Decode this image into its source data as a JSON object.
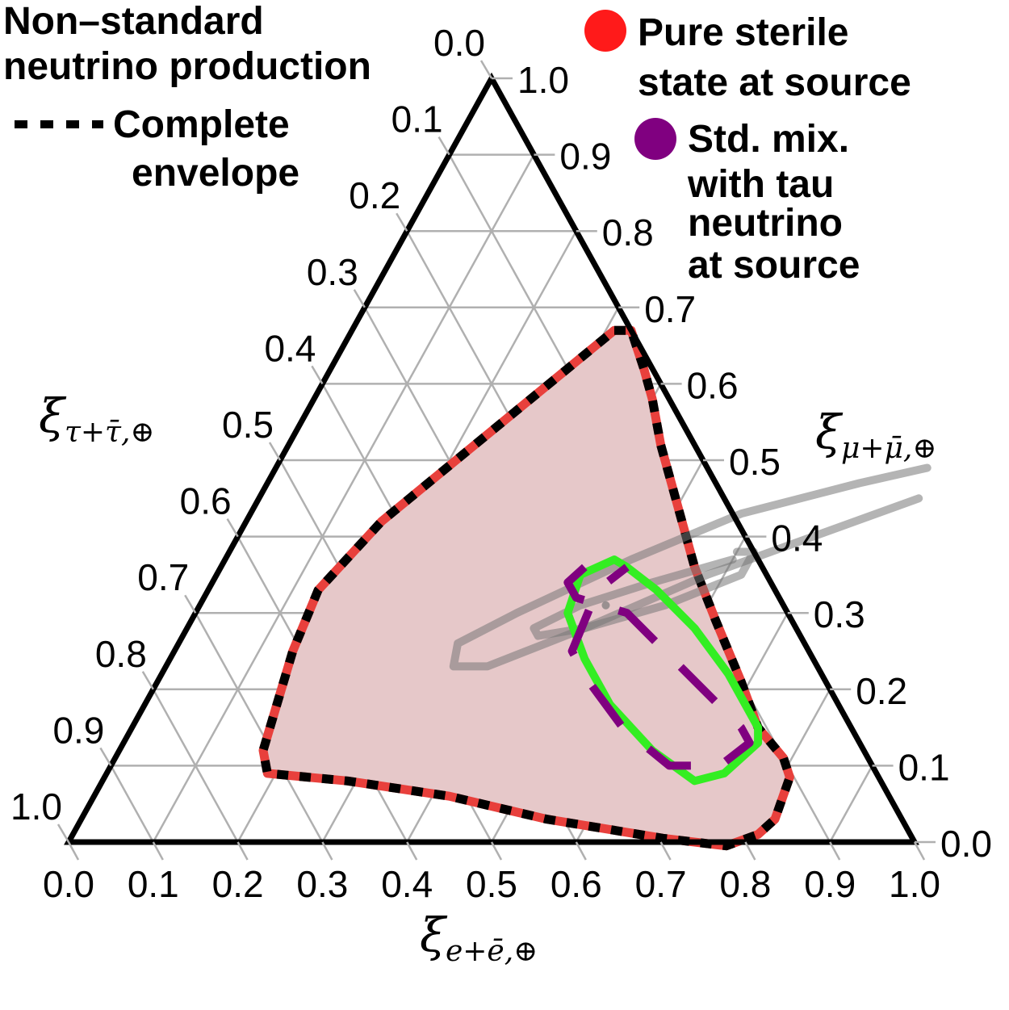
{
  "chart_data": {
    "type": "ternary",
    "axes": {
      "bottom": {
        "label_main": "ξ",
        "label_sub": "e+ē,⊕"
      },
      "right": {
        "label_main": "ξ",
        "label_sub": "μ+μ̄,⊕"
      },
      "left": {
        "label_main": "ξ",
        "label_sub": "τ+τ̄,⊕"
      }
    },
    "tick_labels": [
      "0.0",
      "0.1",
      "0.2",
      "0.3",
      "0.4",
      "0.5",
      "0.6",
      "0.7",
      "0.8",
      "0.9",
      "1.0"
    ],
    "grid": true,
    "legend": {
      "title_lines": [
        "Non–standard",
        "neutrino production"
      ],
      "envelope_lines": [
        "Complete",
        "envelope"
      ],
      "pure_sterile_lines": [
        "Pure sterile",
        "state at source"
      ],
      "std_mix_lines": [
        "Std. mix.",
        "with tau",
        "neutrino",
        "at source"
      ]
    },
    "series": [
      {
        "id": "pure_sterile",
        "color": "#e8403c",
        "fill": "#e6c8c9",
        "points_e_mu": [
          [
            0.31,
            0.67
          ],
          [
            0.33,
            0.67
          ],
          [
            0.37,
            0.62
          ],
          [
            0.4,
            0.58
          ],
          [
            0.44,
            0.52
          ],
          [
            0.5,
            0.44
          ],
          [
            0.56,
            0.36
          ],
          [
            0.62,
            0.29
          ],
          [
            0.69,
            0.21
          ],
          [
            0.74,
            0.15
          ],
          [
            0.79,
            0.11
          ],
          [
            0.81,
            0.085
          ],
          [
            0.82,
            0.03
          ],
          [
            0.81,
            0.01
          ],
          [
            0.78,
            -0.005
          ],
          [
            0.7,
            0.005
          ],
          [
            0.55,
            0.03
          ],
          [
            0.42,
            0.06
          ],
          [
            0.29,
            0.08
          ],
          [
            0.19,
            0.09
          ],
          [
            0.17,
            0.12
          ],
          [
            0.14,
            0.25
          ],
          [
            0.13,
            0.33
          ],
          [
            0.16,
            0.42
          ],
          [
            0.22,
            0.52
          ],
          [
            0.31,
            0.67
          ]
        ]
      },
      {
        "id": "complete_envelope",
        "color": "#000000",
        "style": "dashed",
        "same_points_as": "pure_sterile"
      },
      {
        "id": "std_mix_tau",
        "color": "#800080",
        "points_e_mu": [
          [
            0.43,
            0.36
          ],
          [
            0.42,
            0.34
          ],
          [
            0.44,
            0.32
          ],
          [
            0.51,
            0.3
          ],
          [
            0.58,
            0.25
          ],
          [
            0.65,
            0.2
          ],
          [
            0.72,
            0.15
          ],
          [
            0.74,
            0.13
          ],
          [
            0.72,
            0.1
          ],
          [
            0.66,
            0.1
          ],
          [
            0.58,
            0.15
          ],
          [
            0.51,
            0.21
          ],
          [
            0.47,
            0.25
          ],
          [
            0.46,
            0.33
          ],
          [
            0.48,
            0.36
          ]
        ]
      },
      {
        "id": "std_mix_green",
        "color": "#33ee22",
        "points_e_mu": [
          [
            0.46,
            0.37
          ],
          [
            0.48,
            0.36
          ],
          [
            0.53,
            0.33
          ],
          [
            0.6,
            0.28
          ],
          [
            0.67,
            0.22
          ],
          [
            0.74,
            0.15
          ],
          [
            0.75,
            0.13
          ],
          [
            0.73,
            0.09
          ],
          [
            0.7,
            0.08
          ],
          [
            0.63,
            0.12
          ],
          [
            0.55,
            0.18
          ],
          [
            0.49,
            0.24
          ],
          [
            0.44,
            0.3
          ],
          [
            0.43,
            0.35
          ],
          [
            0.46,
            0.37
          ]
        ]
      },
      {
        "id": "gray_outer",
        "color": "#777777",
        "points_e_mu": [
          [
            0.77,
            0.49
          ],
          [
            0.7,
            0.47
          ],
          [
            0.58,
            0.43
          ],
          [
            0.48,
            0.37
          ],
          [
            0.38,
            0.3
          ],
          [
            0.33,
            0.26
          ],
          [
            0.34,
            0.23
          ],
          [
            0.38,
            0.23
          ],
          [
            0.47,
            0.28
          ],
          [
            0.58,
            0.35
          ],
          [
            0.72,
            0.42
          ],
          [
            0.78,
            0.45
          ]
        ]
      },
      {
        "id": "gray_inner",
        "color": "#777777",
        "points_e_mu": [
          [
            0.6,
            0.38
          ],
          [
            0.62,
            0.38
          ],
          [
            0.62,
            0.35
          ],
          [
            0.55,
            0.31
          ],
          [
            0.47,
            0.28
          ],
          [
            0.42,
            0.27
          ],
          [
            0.41,
            0.28
          ],
          [
            0.45,
            0.31
          ],
          [
            0.52,
            0.34
          ],
          [
            0.6,
            0.37
          ]
        ]
      },
      {
        "id": "gray_point",
        "color": "#777777",
        "point_e_mu": [
          0.48,
          0.31
        ]
      }
    ]
  }
}
